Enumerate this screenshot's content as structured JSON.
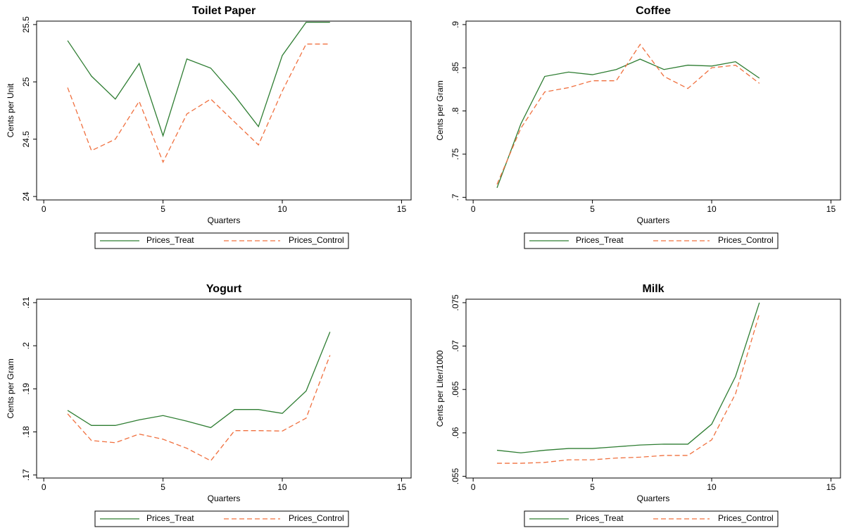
{
  "chart_data": [
    {
      "type": "line",
      "title": "Toilet Paper",
      "x_label": "Quarters",
      "y_label": "Cents per Unit",
      "x": [
        1,
        2,
        3,
        4,
        5,
        6,
        7,
        8,
        9,
        10,
        11,
        12
      ],
      "series": [
        {
          "name": "Prices_Treat",
          "color": "#2e7d32",
          "dashed": false,
          "values": [
            25.36,
            25.05,
            24.85,
            25.16,
            24.53,
            25.2,
            25.12,
            24.88,
            24.61,
            25.23,
            25.52,
            25.52
          ]
        },
        {
          "name": "Prices_Control",
          "color": "#f0703f",
          "dashed": true,
          "values": [
            24.95,
            24.4,
            24.5,
            24.83,
            24.3,
            24.72,
            24.85,
            24.65,
            24.45,
            24.92,
            25.33,
            25.33
          ]
        }
      ],
      "xlim": [
        -0.3,
        15.4
      ],
      "xticks": [
        0,
        5,
        10,
        15
      ],
      "ylim": [
        23.97,
        25.53
      ],
      "yticks": [
        24,
        24.5,
        25,
        25.5
      ],
      "legend": "bottom",
      "grid": false
    },
    {
      "type": "line",
      "title": "Coffee",
      "x_label": "Quarters",
      "y_label": "Cents per Gram",
      "x": [
        1,
        2,
        3,
        4,
        5,
        6,
        7,
        8,
        9,
        10,
        11,
        12
      ],
      "series": [
        {
          "name": "Prices_Treat",
          "color": "#2e7d32",
          "dashed": false,
          "values": [
            0.711,
            0.785,
            0.84,
            0.845,
            0.842,
            0.848,
            0.86,
            0.848,
            0.853,
            0.852,
            0.857,
            0.838
          ]
        },
        {
          "name": "Prices_Control",
          "color": "#f0703f",
          "dashed": true,
          "values": [
            0.715,
            0.78,
            0.822,
            0.827,
            0.835,
            0.835,
            0.877,
            0.84,
            0.826,
            0.85,
            0.853,
            0.832
          ]
        }
      ],
      "xlim": [
        -0.3,
        15.4
      ],
      "xticks": [
        0,
        5,
        10,
        15
      ],
      "ylim": [
        0.697,
        0.904
      ],
      "yticks": [
        {
          "value": 0.7,
          "label": ".7"
        },
        {
          "value": 0.75,
          "label": ".75"
        },
        {
          "value": 0.8,
          "label": ".8"
        },
        {
          "value": 0.85,
          "label": ".85"
        },
        {
          "value": 0.9,
          "label": ".9"
        }
      ],
      "legend": "bottom",
      "grid": false
    },
    {
      "type": "line",
      "title": "Yogurt",
      "x_label": "Quarters",
      "y_label": "Cents per Gram",
      "x": [
        1,
        2,
        3,
        4,
        5,
        6,
        7,
        8,
        9,
        10,
        11,
        12
      ],
      "series": [
        {
          "name": "Prices_Treat",
          "color": "#2e7d32",
          "dashed": false,
          "values": [
            0.185,
            0.1815,
            0.1815,
            0.1828,
            0.1838,
            0.1825,
            0.181,
            0.1852,
            0.1852,
            0.1843,
            0.1895,
            0.2032
          ]
        },
        {
          "name": "Prices_Control",
          "color": "#f0703f",
          "dashed": true,
          "values": [
            0.1842,
            0.178,
            0.1775,
            0.1795,
            0.1783,
            0.1762,
            0.1733,
            0.1803,
            0.1803,
            0.1802,
            0.1832,
            0.1978
          ]
        }
      ],
      "xlim": [
        -0.3,
        15.4
      ],
      "xticks": [
        0,
        5,
        10,
        15
      ],
      "ylim": [
        0.1693,
        0.2108
      ],
      "yticks": [
        {
          "value": 0.17,
          "label": ".17"
        },
        {
          "value": 0.18,
          "label": ".18"
        },
        {
          "value": 0.19,
          "label": ".19"
        },
        {
          "value": 0.2,
          "label": ".2"
        },
        {
          "value": 0.21,
          "label": ".21"
        }
      ],
      "legend": "bottom",
      "grid": false
    },
    {
      "type": "line",
      "title": "Milk",
      "x_label": "Quarters",
      "y_label": "Cents per Liter/1000",
      "x": [
        1,
        2,
        3,
        4,
        5,
        6,
        7,
        8,
        9,
        10,
        11,
        12
      ],
      "series": [
        {
          "name": "Prices_Treat",
          "color": "#2e7d32",
          "dashed": false,
          "values": [
            0.058,
            0.0577,
            0.058,
            0.0582,
            0.0582,
            0.0584,
            0.0586,
            0.0587,
            0.0587,
            0.061,
            0.0665,
            0.075
          ]
        },
        {
          "name": "Prices_Control",
          "color": "#f0703f",
          "dashed": true,
          "values": [
            0.0565,
            0.0565,
            0.0566,
            0.0569,
            0.0569,
            0.0571,
            0.0572,
            0.0574,
            0.0574,
            0.0592,
            0.0645,
            0.0737
          ]
        }
      ],
      "xlim": [
        -0.3,
        15.4
      ],
      "xticks": [
        0,
        5,
        10,
        15
      ],
      "ylim": [
        0.0548,
        0.0754
      ],
      "yticks": [
        {
          "value": 0.055,
          "label": ".055"
        },
        {
          "value": 0.06,
          "label": ".06"
        },
        {
          "value": 0.065,
          "label": ".065"
        },
        {
          "value": 0.07,
          "label": ".07"
        },
        {
          "value": 0.075,
          "label": ".075"
        }
      ],
      "legend": "bottom",
      "grid": false
    }
  ]
}
